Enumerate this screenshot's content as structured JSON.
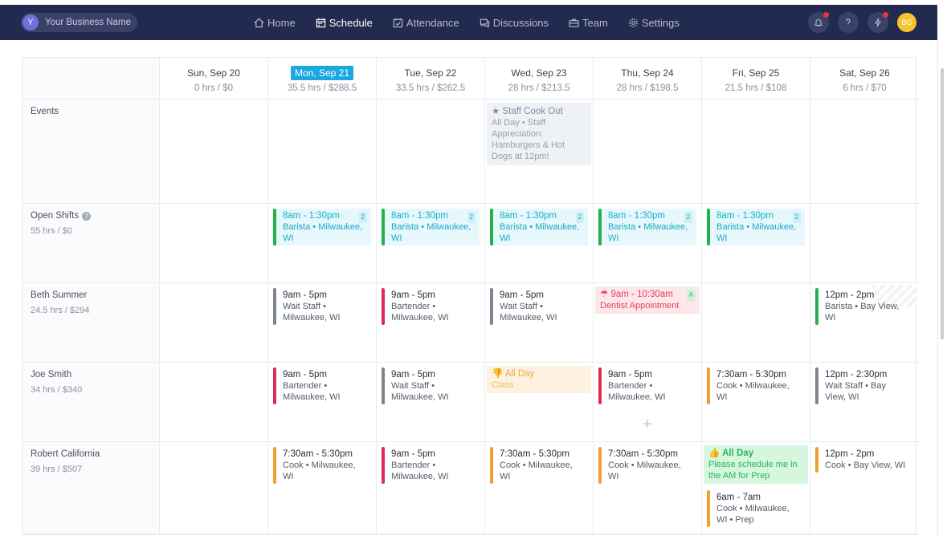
{
  "business": {
    "initial": "Y",
    "name": "Your Business Name"
  },
  "nav": [
    {
      "label": "Home",
      "icon": "home-icon",
      "active": false
    },
    {
      "label": "Schedule",
      "icon": "calendar-icon",
      "active": true
    },
    {
      "label": "Attendance",
      "icon": "attendance-icon",
      "active": false
    },
    {
      "label": "Discussions",
      "icon": "chat-icon",
      "active": false
    },
    {
      "label": "Team",
      "icon": "team-icon",
      "active": false
    },
    {
      "label": "Settings",
      "icon": "gear-icon",
      "active": false
    }
  ],
  "user": {
    "initials": "BG"
  },
  "days": [
    {
      "label": "Sun, Sep 20",
      "summary": "0 hrs / $0",
      "today": false
    },
    {
      "label": "Mon, Sep 21",
      "summary": "35.5 hrs / $288.5",
      "today": true
    },
    {
      "label": "Tue, Sep 22",
      "summary": "33.5 hrs / $262.5",
      "today": false
    },
    {
      "label": "Wed, Sep 23",
      "summary": "28 hrs / $213.5",
      "today": false
    },
    {
      "label": "Thu, Sep 24",
      "summary": "28 hrs / $198.5",
      "today": false
    },
    {
      "label": "Fri, Sep 25",
      "summary": "21.5 hrs / $108",
      "today": false
    },
    {
      "label": "Sat, Sep 26",
      "summary": "6 hrs / $70",
      "today": false
    }
  ],
  "rows": {
    "events": {
      "name": "Events"
    },
    "open": {
      "name": "Open Shifts",
      "summary": "55 hrs / $0"
    },
    "beth": {
      "name": "Beth Summer",
      "summary": "24.5 hrs / $294"
    },
    "joe": {
      "name": "Joe Smith",
      "summary": "34 hrs / $340"
    },
    "robert": {
      "name": "Robert California",
      "summary": "39 hrs / $507"
    }
  },
  "event": {
    "title": "Staff Cook Out",
    "detail": "All Day • Staff Appreciation: Hamburgers & Hot Dogs at 12pm!"
  },
  "open_shift": {
    "time": "8am - 1:30pm",
    "detail": "Barista • Milwaukee, WI",
    "count": "2"
  },
  "beth": {
    "mon": {
      "time": "9am - 5pm",
      "detail": "Wait Staff • Milwaukee, WI",
      "color": "#7d8591"
    },
    "tue": {
      "time": "9am - 5pm",
      "detail": "Bartender • Milwaukee, WI",
      "color": "#dd2c58"
    },
    "wed": {
      "time": "9am - 5pm",
      "detail": "Wait Staff • Milwaukee, WI",
      "color": "#7d8591"
    },
    "thu": {
      "time": "9am - 10:30am",
      "detail": "Dentist Appointment",
      "badge": "A"
    },
    "sat": {
      "time": "12pm - 2pm",
      "detail": "Barista • Bay View, WI",
      "color": "#21b24b"
    }
  },
  "joe": {
    "mon": {
      "time": "9am - 5pm",
      "detail": "Bartender • Milwaukee, WI",
      "color": "#dd2c58"
    },
    "tue": {
      "time": "9am - 5pm",
      "detail": "Wait Staff • Milwaukee, WI",
      "color": "#7d8591"
    },
    "wed": {
      "time": "All Day",
      "detail": "Class"
    },
    "thu": {
      "time": "9am - 5pm",
      "detail": "Bartender • Milwaukee, WI",
      "color": "#dd2c58",
      "plus": "+"
    },
    "fri": {
      "time": "7:30am - 5:30pm",
      "detail": "Cook • Milwaukee, WI",
      "color": "#f0a030"
    },
    "sat": {
      "time": "12pm - 2:30pm",
      "detail": "Wait Staff • Bay View, WI",
      "color": "#7d8591"
    }
  },
  "robert": {
    "mon": {
      "time": "7:30am - 5:30pm",
      "detail": "Cook • Milwaukee, WI",
      "color": "#f0a030"
    },
    "tue": {
      "time": "9am - 5pm",
      "detail": "Bartender • Milwaukee, WI",
      "color": "#dd2c58"
    },
    "wed": {
      "time": "7:30am - 5:30pm",
      "detail": "Cook • Milwaukee, WI",
      "color": "#f0a030"
    },
    "thu": {
      "time": "7:30am - 5:30pm",
      "detail": "Cook • Milwaukee, WI",
      "color": "#f0a030"
    },
    "fri_avail": {
      "time": "All Day",
      "detail": "Please schedule me in the AM for Prep"
    },
    "fri": {
      "time": "6am - 7am",
      "detail": "Cook • Milwaukee, WI • Prep",
      "color": "#f0a030"
    },
    "sat": {
      "time": "12pm - 2pm",
      "detail": "Cook • Bay View, WI",
      "color": "#f0a030"
    }
  }
}
